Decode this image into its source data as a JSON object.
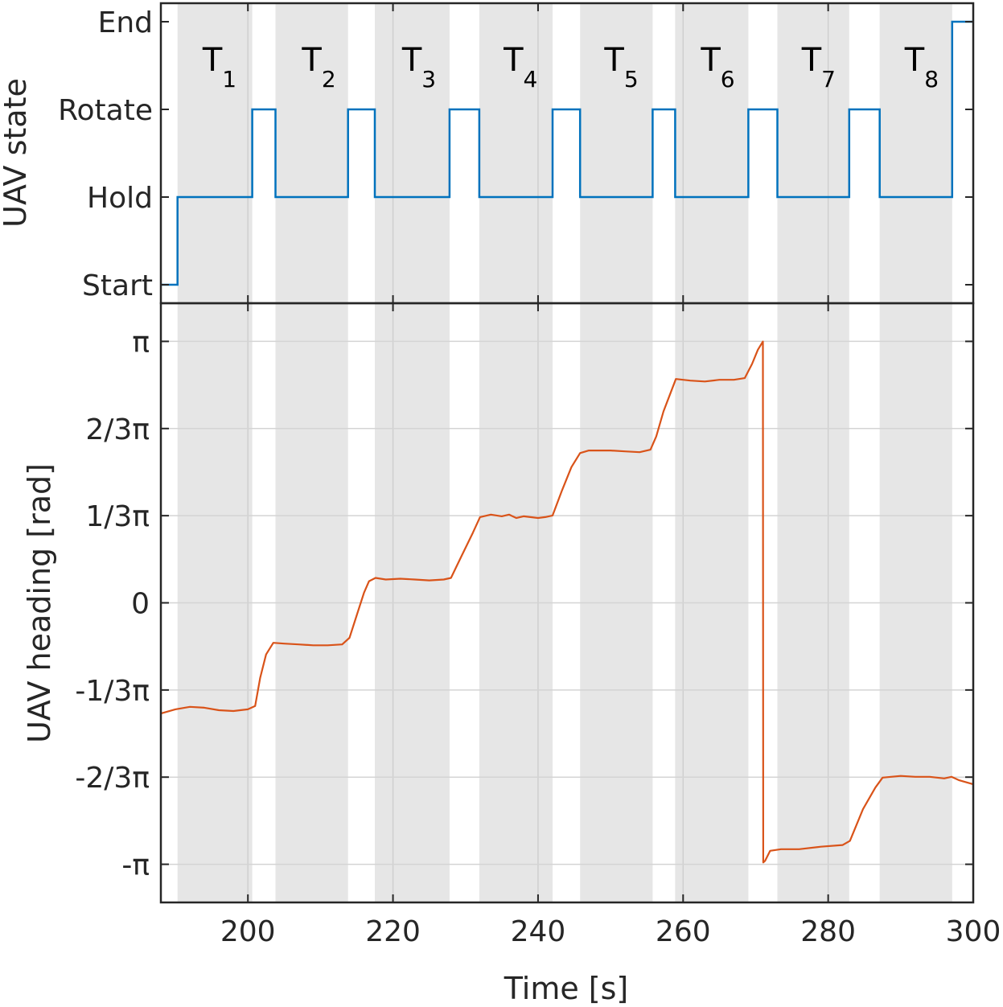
{
  "chart_data": [
    {
      "id": "state",
      "type": "line",
      "ylabel": "UAV state",
      "xlim": [
        188,
        300
      ],
      "y_categories": [
        "Start",
        "Hold",
        "Rotate",
        "End"
      ],
      "colors": {
        "line": "#0072BD",
        "shade": "#e6e6e6"
      },
      "period_labels": [
        {
          "main": "T",
          "sub": "1",
          "x_center": 195.3
        },
        {
          "main": "T",
          "sub": "2",
          "x_center": 209.0
        },
        {
          "main": "T",
          "sub": "3",
          "x_center": 222.8
        },
        {
          "main": "T",
          "sub": "4",
          "x_center": 236.8
        },
        {
          "main": "T",
          "sub": "5",
          "x_center": 250.7
        },
        {
          "main": "T",
          "sub": "6",
          "x_center": 264.0
        },
        {
          "main": "T",
          "sub": "7",
          "x_center": 277.9
        },
        {
          "main": "T",
          "sub": "8",
          "x_center": 292.1
        }
      ],
      "series": [
        {
          "name": "UAV state",
          "x": [
            188,
            190.3,
            190.3,
            200.6,
            200.6,
            203.8,
            203.8,
            213.8,
            213.8,
            217.5,
            217.5,
            227.8,
            227.8,
            231.9,
            231.9,
            242.0,
            242.0,
            245.8,
            245.8,
            255.8,
            255.8,
            258.9,
            258.9,
            269.0,
            269.0,
            273.0,
            273.0,
            282.9,
            282.9,
            287.1,
            287.1,
            297.1,
            297.1,
            300
          ],
          "y": [
            0,
            0,
            1,
            1,
            2,
            2,
            1,
            1,
            2,
            2,
            1,
            1,
            2,
            2,
            1,
            1,
            2,
            2,
            1,
            1,
            2,
            2,
            1,
            1,
            2,
            2,
            1,
            1,
            2,
            2,
            1,
            1,
            3,
            3
          ]
        }
      ]
    },
    {
      "id": "heading",
      "type": "line",
      "xlabel": "Time [s]",
      "ylabel": "UAV heading [rad]",
      "xlim": [
        188,
        300
      ],
      "ylim": [
        -3.6,
        3.6
      ],
      "x_ticks": [
        200,
        220,
        240,
        260,
        280,
        300
      ],
      "y_ticks": [
        {
          "value": -3.14159,
          "label": "-π"
        },
        {
          "value": -2.0944,
          "label": "-2/3π"
        },
        {
          "value": -1.0472,
          "label": "-1/3π"
        },
        {
          "value": 0,
          "label": "0"
        },
        {
          "value": 1.0472,
          "label": "1/3π"
        },
        {
          "value": 2.0944,
          "label": "2/3π"
        },
        {
          "value": 3.14159,
          "label": "π"
        }
      ],
      "grid": true,
      "colors": {
        "line": "#D95319",
        "shade": "#e6e6e6",
        "grid": "#d9d9d9"
      },
      "shaded_intervals": [
        [
          190.3,
          200.6
        ],
        [
          203.8,
          213.8
        ],
        [
          217.5,
          227.8
        ],
        [
          231.9,
          242.0
        ],
        [
          245.8,
          255.8
        ],
        [
          258.9,
          269.0
        ],
        [
          273.0,
          282.9
        ],
        [
          287.1,
          297.1
        ]
      ],
      "series": [
        {
          "name": "UAV heading",
          "x": [
            188,
            190,
            192,
            194,
            196,
            198,
            200,
            201,
            201.7,
            202.5,
            203.5,
            205,
            207,
            209,
            211,
            213,
            214,
            215,
            216,
            216.7,
            217.6,
            219,
            221,
            223,
            225,
            227,
            228,
            229.5,
            231,
            232,
            233.5,
            235,
            236,
            237,
            238,
            240,
            241,
            242,
            243.3,
            244.6,
            245.8,
            247,
            250,
            252,
            254,
            255.5,
            256.3,
            257.3,
            258.3,
            259,
            261,
            263,
            265,
            267,
            268.5,
            269.5,
            270.3,
            271.0,
            271.05,
            271.3,
            272.0,
            273.5,
            276,
            279,
            282,
            283,
            284.8,
            286.5,
            287.5,
            290,
            292,
            294,
            296,
            297,
            298,
            300
          ],
          "y": [
            -1.33,
            -1.28,
            -1.25,
            -1.26,
            -1.29,
            -1.3,
            -1.28,
            -1.24,
            -0.9,
            -0.62,
            -0.48,
            -0.49,
            -0.5,
            -0.51,
            -0.51,
            -0.5,
            -0.42,
            -0.15,
            0.12,
            0.26,
            0.3,
            0.28,
            0.29,
            0.28,
            0.27,
            0.28,
            0.3,
            0.57,
            0.84,
            1.03,
            1.06,
            1.04,
            1.06,
            1.02,
            1.04,
            1.02,
            1.03,
            1.05,
            1.35,
            1.63,
            1.8,
            1.83,
            1.83,
            1.82,
            1.81,
            1.84,
            2.0,
            2.3,
            2.53,
            2.69,
            2.67,
            2.66,
            2.68,
            2.68,
            2.7,
            2.87,
            3.04,
            3.14,
            -3.12,
            -3.1,
            -2.98,
            -2.96,
            -2.96,
            -2.93,
            -2.91,
            -2.86,
            -2.48,
            -2.22,
            -2.1,
            -2.08,
            -2.09,
            -2.09,
            -2.11,
            -2.09,
            -2.13,
            -2.18
          ]
        }
      ]
    }
  ]
}
